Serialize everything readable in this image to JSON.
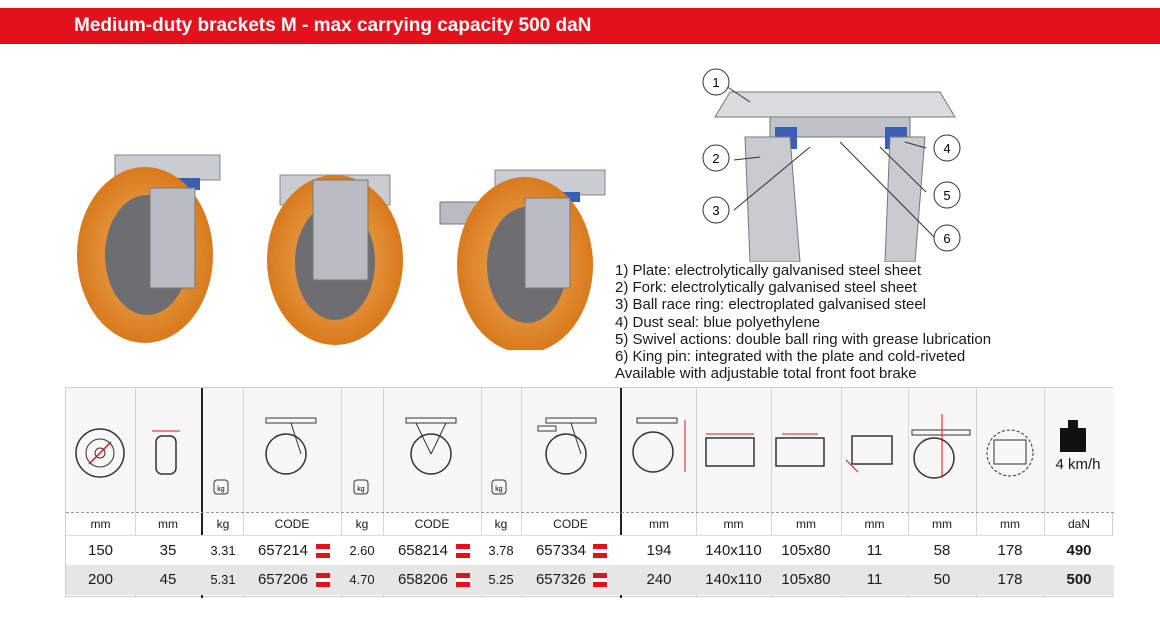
{
  "banner": {
    "title": "Medium-duty brackets M - max carrying capacity 500 daN"
  },
  "schematic_labels": [
    "1",
    "2",
    "3",
    "4",
    "5",
    "6"
  ],
  "features": [
    "1) Plate: electrolytically galvanised steel sheet",
    "2) Fork: electrolytically galvanised steel sheet",
    "3) Ball race ring: electroplated galvanised steel",
    "4) Dust seal: blue polyethylene",
    "5) Swivel actions: double ball ring with grease lubrication",
    "6) King pin: integrated with the plate and cold-riveted",
    "Available with adjustable total front foot brake"
  ],
  "table": {
    "speed_label": "4 km/h",
    "weight_icon_label": "kg",
    "units": [
      "mm",
      "mm",
      "kg",
      "CODE",
      "kg",
      "CODE",
      "kg",
      "CODE",
      "mm",
      "mm",
      "mm",
      "mm",
      "mm",
      "mm",
      "daN"
    ],
    "rows": [
      [
        "150",
        "35",
        "3.31",
        "657214",
        "2.60",
        "658214",
        "3.78",
        "657334",
        "194",
        "140x110",
        "105x80",
        "11",
        "58",
        "178",
        "490"
      ],
      [
        "200",
        "45",
        "5.31",
        "657206",
        "4.70",
        "658206",
        "5.25",
        "657326",
        "240",
        "140x110",
        "105x80",
        "11",
        "50",
        "178",
        "500"
      ]
    ]
  },
  "colors": {
    "brand_red": "#e2121d",
    "wheel_orange": "#e8902a",
    "seal_blue": "#3a5db8"
  }
}
